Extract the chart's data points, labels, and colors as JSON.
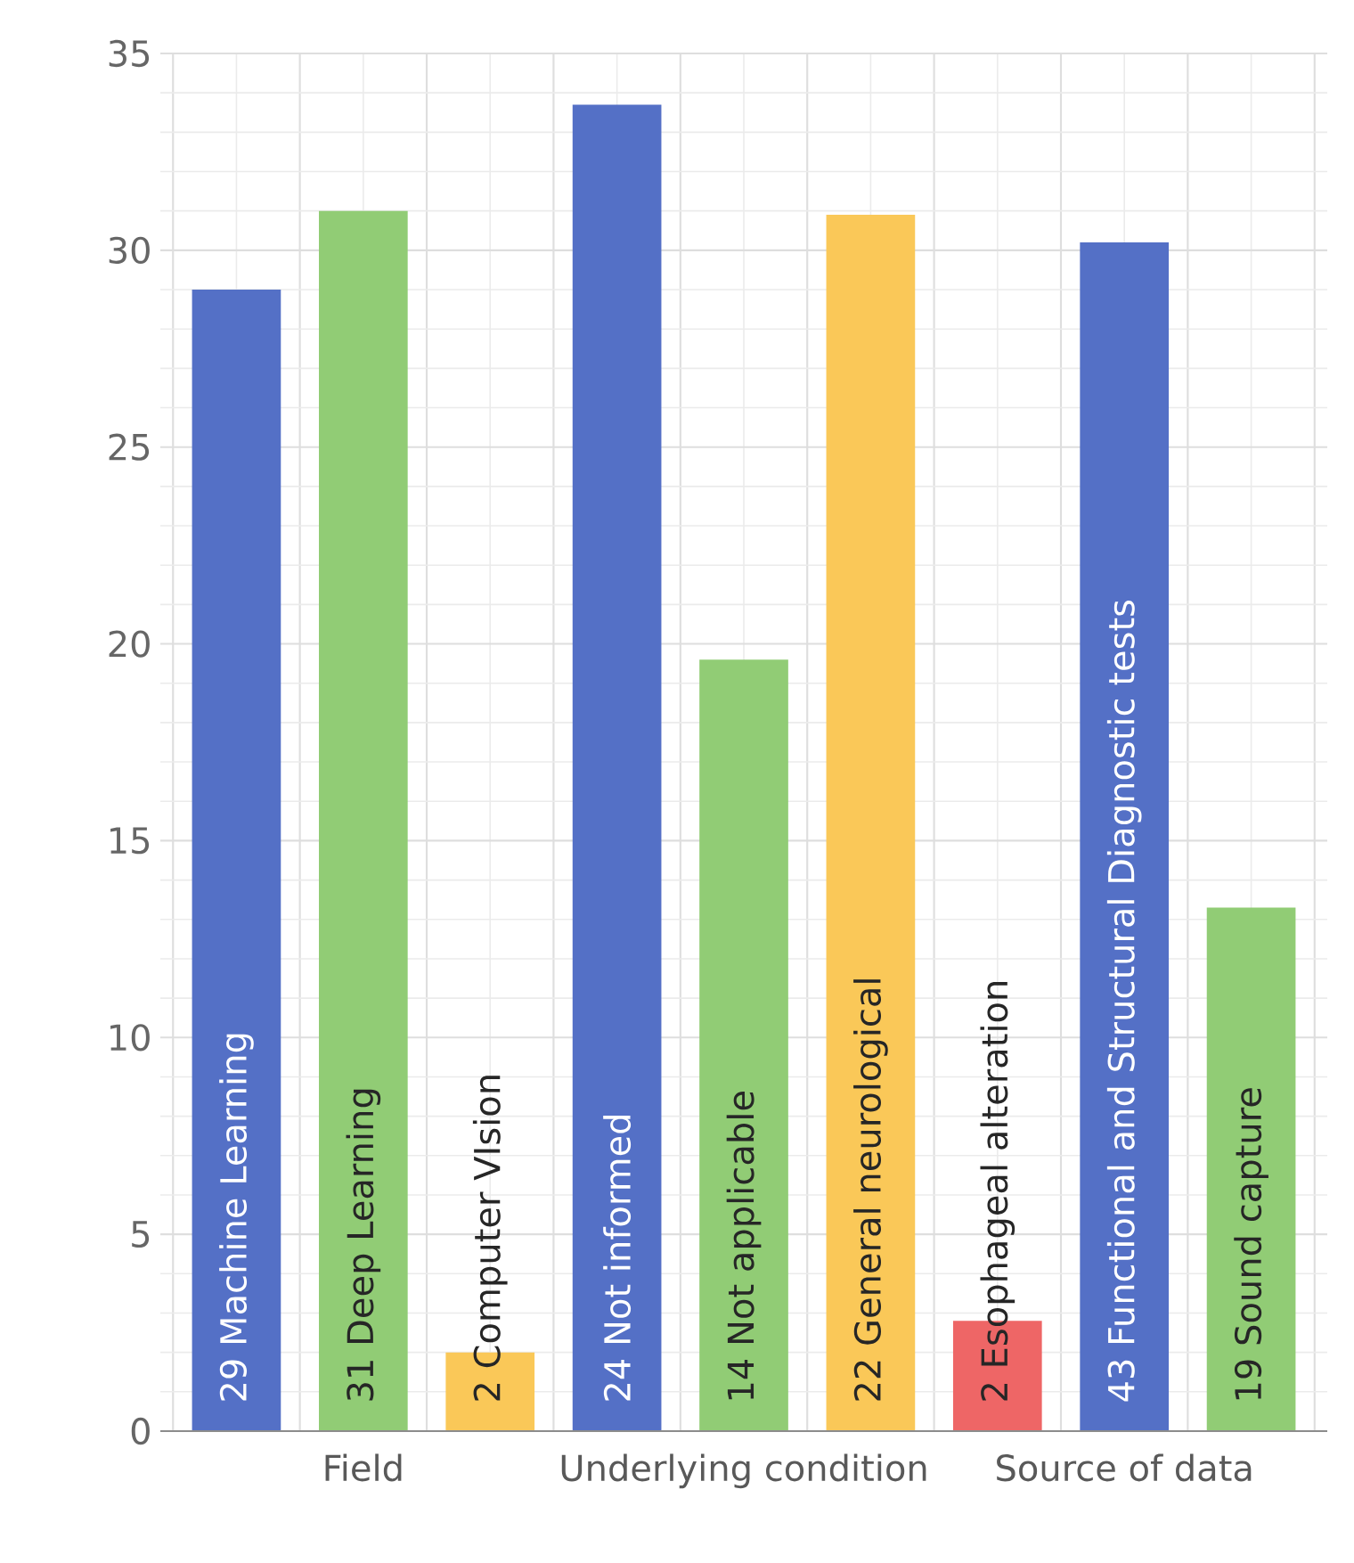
{
  "chart_data": {
    "type": "bar",
    "categories": [
      "29  Machine Learning",
      "31  Deep Learning",
      "2  Computer VIsion",
      "24  Not informed",
      "14  Not applicable",
      "22  General neurological",
      "2  Esophageal alteration",
      "43  Functional and Structural Diagnostic tests",
      "19  Sound capture"
    ],
    "values": [
      29,
      31,
      2,
      33.7,
      19.6,
      30.9,
      2.8,
      30.2,
      13.3
    ],
    "colors": [
      "#5470c6",
      "#91cc75",
      "#fac858",
      "#5470c6",
      "#91cc75",
      "#fac858",
      "#ee6666",
      "#5470c6",
      "#91cc75"
    ],
    "annotations": [
      {
        "text": "Field",
        "x": "31  Deep Learning",
        "y": 0
      },
      {
        "text": "Underlying condition",
        "x": "14  Not applicable",
        "y": 0
      },
      {
        "text": "Source of data",
        "x": "43  Functional and Structural Diagnostic tests",
        "y": 0
      }
    ],
    "ylim": [
      0,
      35
    ],
    "yticks": [
      0,
      5,
      10,
      15,
      20,
      25,
      30,
      35
    ],
    "grid": true
  }
}
